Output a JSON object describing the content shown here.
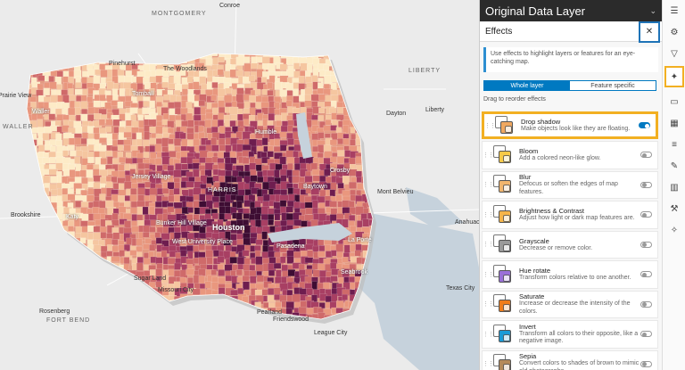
{
  "map": {
    "places": [
      {
        "label": "Conroe",
        "cls": "city"
      },
      {
        "label": "MONTGOMERY",
        "cls": "county"
      },
      {
        "label": "Pinehurst",
        "cls": "city"
      },
      {
        "label": "The Woodlands",
        "cls": "city"
      },
      {
        "label": "Tomball",
        "cls": "city light"
      },
      {
        "label": "LIBERTY",
        "cls": "county"
      },
      {
        "label": "Prairie View",
        "cls": "city"
      },
      {
        "label": "Dayton",
        "cls": "city"
      },
      {
        "label": "Liberty",
        "cls": "city"
      },
      {
        "label": "WALLER",
        "cls": "county"
      },
      {
        "label": "Waller",
        "cls": "city light"
      },
      {
        "label": "Humble",
        "cls": "city light"
      },
      {
        "label": "Jersey Village",
        "cls": "city light"
      },
      {
        "label": "Crosby",
        "cls": "city light"
      },
      {
        "label": "Mont Belvieu",
        "cls": "city"
      },
      {
        "label": "HARRIS",
        "cls": "county light"
      },
      {
        "label": "Baytown",
        "cls": "city light"
      },
      {
        "label": "Brookshire",
        "cls": "city"
      },
      {
        "label": "Katy",
        "cls": "city light"
      },
      {
        "label": "Bunker Hill Village",
        "cls": "city light"
      },
      {
        "label": "Houston",
        "cls": "major light"
      },
      {
        "label": "West University Place",
        "cls": "city light"
      },
      {
        "label": "Anahuac",
        "cls": "city"
      },
      {
        "label": "La Porte",
        "cls": "city light"
      },
      {
        "label": "Pasadena",
        "cls": "city light"
      },
      {
        "label": "Sugar Land",
        "cls": "city"
      },
      {
        "label": "Missouri City",
        "cls": "city"
      },
      {
        "label": "Texas City",
        "cls": "city"
      },
      {
        "label": "Seabrook",
        "cls": "city light"
      },
      {
        "label": "Rosenberg",
        "cls": "city"
      },
      {
        "label": "FORT BEND",
        "cls": "county"
      },
      {
        "label": "Pearland",
        "cls": "city"
      },
      {
        "label": "Friendswood",
        "cls": "city"
      },
      {
        "label": "League City",
        "cls": "city"
      }
    ]
  },
  "panel": {
    "title": "Original Data Layer",
    "section": "Effects",
    "notice": "Use effects to highlight layers or features for an eye-catching map.",
    "tabs": [
      "Whole layer",
      "Feature specific"
    ],
    "drag_label": "Drag to reorder effects",
    "effects": [
      {
        "name": "Drop shadow",
        "desc": "Make objects look like they are floating.",
        "on": true,
        "thumb": "#f0a860"
      },
      {
        "name": "Bloom",
        "desc": "Add a colored neon-like glow.",
        "on": false,
        "thumb": "#f7c948"
      },
      {
        "name": "Blur",
        "desc": "Defocus or soften the edges of map features.",
        "on": false,
        "thumb": "#f2b66e"
      },
      {
        "name": "Brightness & Contrast",
        "desc": "Adjust how light or dark map features are.",
        "on": false,
        "thumb": "#f5b54a"
      },
      {
        "name": "Grayscale",
        "desc": "Decrease or remove color.",
        "on": false,
        "thumb": "#9a9a9a"
      },
      {
        "name": "Hue rotate",
        "desc": "Transform colors relative to one another.",
        "on": false,
        "thumb": "#9a6fd8"
      },
      {
        "name": "Saturate",
        "desc": "Increase or decrease the intensity of the colors.",
        "on": false,
        "thumb": "#ef7d1a"
      },
      {
        "name": "Invert",
        "desc": "Transform all colors to their opposite, like a negative image.",
        "on": false,
        "thumb": "#1a9ad6"
      },
      {
        "name": "Sepia",
        "desc": "Convert colors to shades of brown to mimic old photographs.",
        "on": false,
        "thumb": "#b48a5a"
      }
    ]
  },
  "toolbar": {
    "tools": [
      "properties-icon",
      "styles-icon",
      "filter-icon",
      "effects-icon",
      "popups-icon",
      "labels-icon",
      "fields-icon",
      "sketch-icon",
      "charts-icon",
      "configure-icon",
      "settings-icon"
    ],
    "glyphs": [
      "☰",
      "⚙",
      "▽",
      "✦",
      "▭",
      "▦",
      "≡",
      "✎",
      "▥",
      "⚒",
      "✧"
    ],
    "active_index": 3
  },
  "colors": {
    "accent": "#0079c1",
    "highlight": "#f2b022",
    "choropleth": [
      "#fdebc7",
      "#f5c6a0",
      "#e9977e",
      "#cf6a6a",
      "#a83f63",
      "#6e1d4f",
      "#3e0d33"
    ]
  }
}
